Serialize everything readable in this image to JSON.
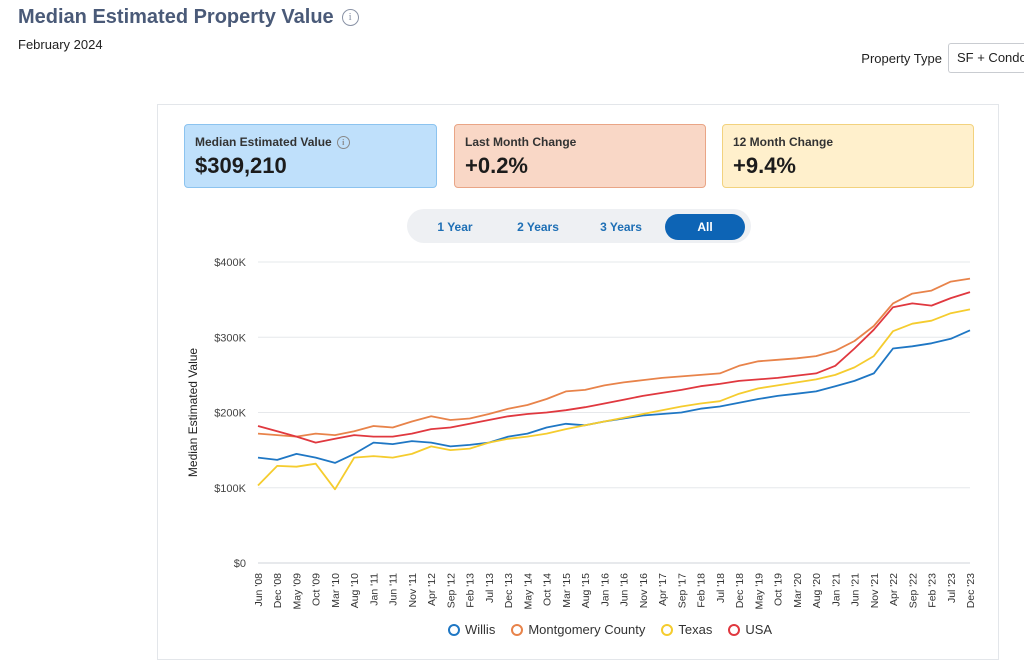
{
  "header": {
    "title": "Median Estimated Property Value",
    "subtitle": "February 2024",
    "property_type_label": "Property Type",
    "property_type_value": "SF + Condo"
  },
  "cards": [
    {
      "label": "Median Estimated Value",
      "value": "$309,210"
    },
    {
      "label": "Last Month Change",
      "value": "+0.2%"
    },
    {
      "label": "12 Month Change",
      "value": "+9.4%"
    }
  ],
  "tabs": [
    "1 Year",
    "2 Years",
    "3 Years",
    "All"
  ],
  "active_tab": "All",
  "legend": [
    "Willis",
    "Montgomery County",
    "Texas",
    "USA"
  ],
  "colors": {
    "Willis": "#1f77c4",
    "Montgomery County": "#e8834a",
    "Texas": "#f5cc2e",
    "USA": "#e0383f"
  },
  "chart_data": {
    "type": "line",
    "ylabel": "Median Estimated Value",
    "ylim": [
      0,
      400000
    ],
    "yticks": [
      "$0",
      "$100K",
      "$200K",
      "$300K",
      "$400K"
    ],
    "xticks": [
      "Jun '08",
      "Dec '08",
      "May '09",
      "Oct '09",
      "Mar '10",
      "Aug '10",
      "Jan '11",
      "Jun '11",
      "Nov '11",
      "Apr '12",
      "Sep '12",
      "Feb '13",
      "Jul '13",
      "Dec '13",
      "May '14",
      "Oct '14",
      "Mar '15",
      "Aug '15",
      "Jan '16",
      "Jun '16",
      "Nov '16",
      "Apr '17",
      "Sep '17",
      "Feb '18",
      "Jul '18",
      "Dec '18",
      "May '19",
      "Oct '19",
      "Mar '20",
      "Aug '20",
      "Jan '21",
      "Jun '21",
      "Nov '21",
      "Apr '22",
      "Sep '22",
      "Feb '23",
      "Jul '23",
      "Dec '23"
    ],
    "series": [
      {
        "name": "Willis",
        "points": [
          [
            "Jun '08",
            140000
          ],
          [
            "Dec '08",
            137000
          ],
          [
            "May '09",
            145000
          ],
          [
            "Oct '09",
            140000
          ],
          [
            "Mar '10",
            133000
          ],
          [
            "Aug '10",
            145000
          ],
          [
            "Jan '11",
            160000
          ],
          [
            "Jun '11",
            158000
          ],
          [
            "Nov '11",
            162000
          ],
          [
            "Apr '12",
            160000
          ],
          [
            "Sep '12",
            155000
          ],
          [
            "Feb '13",
            157000
          ],
          [
            "Jul '13",
            160000
          ],
          [
            "Dec '13",
            168000
          ],
          [
            "May '14",
            172000
          ],
          [
            "Oct '14",
            180000
          ],
          [
            "Mar '15",
            185000
          ],
          [
            "Aug '15",
            183000
          ],
          [
            "Jan '16",
            188000
          ],
          [
            "Jun '16",
            192000
          ],
          [
            "Nov '16",
            196000
          ],
          [
            "Apr '17",
            198000
          ],
          [
            "Sep '17",
            200000
          ],
          [
            "Feb '18",
            205000
          ],
          [
            "Jul '18",
            208000
          ],
          [
            "Dec '18",
            213000
          ],
          [
            "May '19",
            218000
          ],
          [
            "Oct '19",
            222000
          ],
          [
            "Mar '20",
            225000
          ],
          [
            "Aug '20",
            228000
          ],
          [
            "Jan '21",
            235000
          ],
          [
            "Jun '21",
            242000
          ],
          [
            "Nov '21",
            252000
          ],
          [
            "Apr '22",
            285000
          ],
          [
            "Sep '22",
            288000
          ],
          [
            "Feb '23",
            292000
          ],
          [
            "Jul '23",
            298000
          ],
          [
            "Dec '23",
            309210
          ]
        ]
      },
      {
        "name": "Montgomery County",
        "points": [
          [
            "Jun '08",
            172000
          ],
          [
            "Dec '08",
            170000
          ],
          [
            "May '09",
            168000
          ],
          [
            "Oct '09",
            172000
          ],
          [
            "Mar '10",
            170000
          ],
          [
            "Aug '10",
            175000
          ],
          [
            "Jan '11",
            182000
          ],
          [
            "Jun '11",
            180000
          ],
          [
            "Nov '11",
            188000
          ],
          [
            "Apr '12",
            195000
          ],
          [
            "Sep '12",
            190000
          ],
          [
            "Feb '13",
            192000
          ],
          [
            "Jul '13",
            198000
          ],
          [
            "Dec '13",
            205000
          ],
          [
            "May '14",
            210000
          ],
          [
            "Oct '14",
            218000
          ],
          [
            "Mar '15",
            228000
          ],
          [
            "Aug '15",
            230000
          ],
          [
            "Jan '16",
            236000
          ],
          [
            "Jun '16",
            240000
          ],
          [
            "Nov '16",
            243000
          ],
          [
            "Apr '17",
            246000
          ],
          [
            "Sep '17",
            248000
          ],
          [
            "Feb '18",
            250000
          ],
          [
            "Jul '18",
            252000
          ],
          [
            "Dec '18",
            262000
          ],
          [
            "May '19",
            268000
          ],
          [
            "Oct '19",
            270000
          ],
          [
            "Mar '20",
            272000
          ],
          [
            "Aug '20",
            275000
          ],
          [
            "Jan '21",
            282000
          ],
          [
            "Jun '21",
            295000
          ],
          [
            "Nov '21",
            315000
          ],
          [
            "Apr '22",
            345000
          ],
          [
            "Sep '22",
            358000
          ],
          [
            "Feb '23",
            362000
          ],
          [
            "Jul '23",
            374000
          ],
          [
            "Dec '23",
            378000
          ]
        ]
      },
      {
        "name": "Texas",
        "points": [
          [
            "Jun '08",
            103000
          ],
          [
            "Dec '08",
            129000
          ],
          [
            "May '09",
            128000
          ],
          [
            "Oct '09",
            132000
          ],
          [
            "Mar '10",
            98000
          ],
          [
            "Aug '10",
            140000
          ],
          [
            "Jan '11",
            142000
          ],
          [
            "Jun '11",
            140000
          ],
          [
            "Nov '11",
            145000
          ],
          [
            "Apr '12",
            155000
          ],
          [
            "Sep '12",
            150000
          ],
          [
            "Feb '13",
            152000
          ],
          [
            "Jul '13",
            160000
          ],
          [
            "Dec '13",
            165000
          ],
          [
            "May '14",
            168000
          ],
          [
            "Oct '14",
            172000
          ],
          [
            "Mar '15",
            178000
          ],
          [
            "Aug '15",
            183000
          ],
          [
            "Jan '16",
            188000
          ],
          [
            "Jun '16",
            193000
          ],
          [
            "Nov '16",
            198000
          ],
          [
            "Apr '17",
            203000
          ],
          [
            "Sep '17",
            208000
          ],
          [
            "Feb '18",
            212000
          ],
          [
            "Jul '18",
            215000
          ],
          [
            "Dec '18",
            225000
          ],
          [
            "May '19",
            232000
          ],
          [
            "Oct '19",
            236000
          ],
          [
            "Mar '20",
            240000
          ],
          [
            "Aug '20",
            244000
          ],
          [
            "Jan '21",
            250000
          ],
          [
            "Jun '21",
            260000
          ],
          [
            "Nov '21",
            275000
          ],
          [
            "Apr '22",
            308000
          ],
          [
            "Sep '22",
            318000
          ],
          [
            "Feb '23",
            322000
          ],
          [
            "Jul '23",
            332000
          ],
          [
            "Dec '23",
            337000
          ]
        ]
      },
      {
        "name": "USA",
        "points": [
          [
            "Jun '08",
            182000
          ],
          [
            "Dec '08",
            175000
          ],
          [
            "May '09",
            168000
          ],
          [
            "Oct '09",
            160000
          ],
          [
            "Mar '10",
            165000
          ],
          [
            "Aug '10",
            170000
          ],
          [
            "Jan '11",
            168000
          ],
          [
            "Jun '11",
            168000
          ],
          [
            "Nov '11",
            172000
          ],
          [
            "Apr '12",
            178000
          ],
          [
            "Sep '12",
            180000
          ],
          [
            "Feb '13",
            185000
          ],
          [
            "Jul '13",
            190000
          ],
          [
            "Dec '13",
            195000
          ],
          [
            "May '14",
            198000
          ],
          [
            "Oct '14",
            200000
          ],
          [
            "Mar '15",
            203000
          ],
          [
            "Aug '15",
            207000
          ],
          [
            "Jan '16",
            212000
          ],
          [
            "Jun '16",
            217000
          ],
          [
            "Nov '16",
            222000
          ],
          [
            "Apr '17",
            226000
          ],
          [
            "Sep '17",
            230000
          ],
          [
            "Feb '18",
            235000
          ],
          [
            "Jul '18",
            238000
          ],
          [
            "Dec '18",
            242000
          ],
          [
            "May '19",
            244000
          ],
          [
            "Oct '19",
            246000
          ],
          [
            "Mar '20",
            249000
          ],
          [
            "Aug '20",
            252000
          ],
          [
            "Jan '21",
            262000
          ],
          [
            "Jun '21",
            285000
          ],
          [
            "Nov '21",
            310000
          ],
          [
            "Apr '22",
            340000
          ],
          [
            "Sep '22",
            345000
          ],
          [
            "Feb '23",
            342000
          ],
          [
            "Jul '23",
            352000
          ],
          [
            "Dec '23",
            360000
          ]
        ]
      }
    ]
  }
}
